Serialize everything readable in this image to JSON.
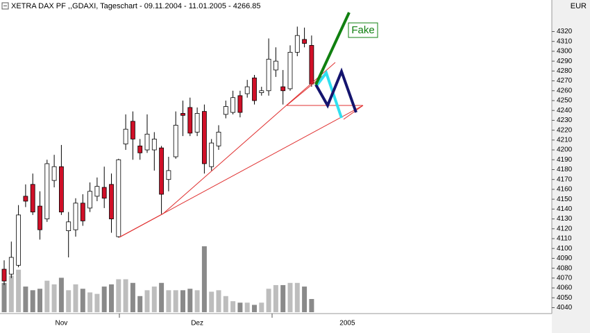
{
  "chart_data": {
    "type": "candlestick",
    "title": "XETRA DAX PF ,,GDAXI, Tageschart - 09.11.2004 - 11.01.2005 - 4266.85",
    "currency": "EUR",
    "annotations": [
      "Fake"
    ],
    "categories": [
      null,
      null,
      null,
      null,
      null,
      null,
      null,
      null,
      "Nov",
      null,
      null,
      null,
      null,
      null,
      null,
      null,
      null,
      null,
      null,
      null,
      null,
      null,
      null,
      null,
      null,
      null,
      null,
      "Dez",
      null,
      null,
      null,
      null,
      null,
      null,
      null,
      null,
      null,
      null,
      null,
      null,
      null,
      null,
      null,
      null,
      null,
      null,
      null,
      null,
      "2005",
      null
    ],
    "open": [
      4079,
      4074,
      4083,
      4153,
      4165,
      4143,
      4130,
      4169,
      4183,
      4118,
      4119,
      4146,
      4141,
      4153,
      4162,
      4165,
      4112,
      4206,
      4229,
      4204,
      4200,
      4200,
      4202,
      4170,
      4193,
      4237,
      4243,
      4218,
      4239,
      4183,
      4204,
      4236,
      4238,
      4255,
      4257,
      4273,
      4258,
      4260,
      4281,
      4264,
      4262,
      4299,
      4312,
      4306,
      null,
      null,
      null,
      null,
      null,
      null
    ],
    "high": [
      4088,
      4107,
      4144,
      4165,
      4176,
      4158,
      4190,
      4195,
      4205,
      4137,
      4151,
      4155,
      4167,
      4172,
      4183,
      4176,
      4191,
      4236,
      4239,
      4211,
      4236,
      4218,
      4204,
      4193,
      4239,
      4250,
      4253,
      4243,
      4246,
      4211,
      4225,
      4250,
      4260,
      4260,
      4271,
      4276,
      4264,
      4313,
      4304,
      4281,
      4306,
      4325,
      4324,
      4316,
      null,
      null,
      null,
      null,
      null,
      null
    ],
    "low": [
      4063,
      4070,
      4081,
      4142,
      4134,
      4109,
      4127,
      4162,
      4134,
      4091,
      4112,
      4123,
      4137,
      4148,
      4141,
      4116,
      4111,
      4200,
      4190,
      4190,
      4197,
      4179,
      4135,
      4158,
      4191,
      4214,
      4214,
      4214,
      4176,
      4179,
      4200,
      4232,
      4236,
      4233,
      4253,
      4246,
      4255,
      4255,
      4274,
      4246,
      4260,
      4295,
      4304,
      4264,
      null,
      null,
      null,
      null,
      null,
      null
    ],
    "close": [
      4067,
      4091,
      4134,
      4148,
      4137,
      4119,
      4186,
      4183,
      4137,
      4127,
      4146,
      4128,
      4158,
      4163,
      4151,
      4130,
      4190,
      4221,
      4211,
      4197,
      4216,
      4211,
      4155,
      4179,
      4225,
      4235,
      4217,
      4237,
      4186,
      4207,
      4218,
      4244,
      4253,
      4238,
      4264,
      4250,
      4260,
      4292,
      4290,
      4260,
      4299,
      4316,
      4308,
      4266.85,
      null,
      null,
      null,
      null,
      null,
      null
    ],
    "volume": [
      40,
      50,
      58,
      35,
      30,
      32,
      43,
      38,
      47,
      30,
      38,
      32,
      27,
      25,
      35,
      38,
      45,
      45,
      40,
      22,
      30,
      35,
      40,
      30,
      30,
      30,
      32,
      30,
      90,
      28,
      30,
      22,
      15,
      13,
      13,
      10,
      13,
      32,
      37,
      37,
      40,
      40,
      35,
      18,
      null,
      null,
      null,
      null,
      null,
      null
    ],
    "ylim": [
      4034,
      4352
    ],
    "yticks": [
      4040,
      4050,
      4060,
      4070,
      4080,
      4090,
      4100,
      4110,
      4120,
      4130,
      4140,
      4150,
      4160,
      4170,
      4180,
      4190,
      4200,
      4210,
      4220,
      4230,
      4240,
      4250,
      4260,
      4270,
      4280,
      4290,
      4300,
      4310,
      4320
    ],
    "up_color": "#ffffff",
    "down_color": "#d01028",
    "wick_color": "#000000",
    "volume_up_color": "#bdbdbd",
    "volume_down_color": "#8a8a8a"
  }
}
